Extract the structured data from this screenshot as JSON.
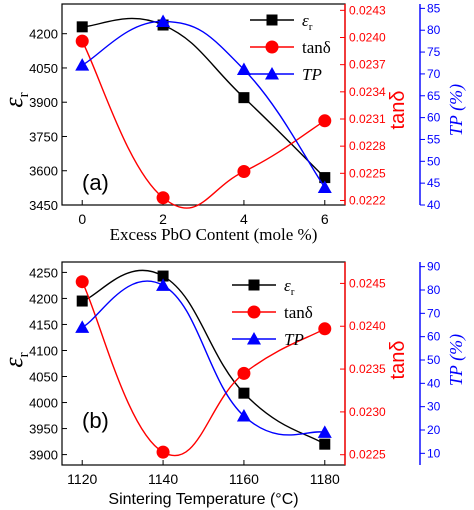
{
  "colors": {
    "permittivity": "#000000",
    "tan_delta": "#ff0000",
    "tp": "#0000ff"
  },
  "chart_data": [
    {
      "type": "line",
      "panel_label": "(a)",
      "xlabel": "Excess PbO Content (mole %)",
      "x": [
        0,
        2,
        4,
        6
      ],
      "x_ticks": [
        "0",
        "2",
        "4",
        "6"
      ],
      "xlim": [
        -0.5,
        6.5
      ],
      "axes": {
        "left": {
          "label": "ε",
          "label_sub": "r",
          "ylim": [
            3450,
            4330
          ],
          "ticks": [
            "3450",
            "3600",
            "3750",
            "3900",
            "4050",
            "4200"
          ]
        },
        "right1": {
          "label": "tanδ",
          "ylim": [
            0.02215,
            0.02437
          ],
          "ticks": [
            "0.0222",
            "0.0225",
            "0.0228",
            "0.0231",
            "0.0234",
            "0.0237",
            "0.0240",
            "0.0243"
          ]
        },
        "right2": {
          "label": "TP (%)",
          "ylim": [
            40,
            86
          ],
          "ticks": [
            "40",
            "45",
            "50",
            "55",
            "60",
            "65",
            "70",
            "75",
            "80",
            "85"
          ]
        }
      },
      "series": [
        {
          "name": "ε",
          "name_sub": "r",
          "axis": "left",
          "marker": "square",
          "color": "#000000",
          "values": [
            4230,
            4238,
            3920,
            3570
          ]
        },
        {
          "name": "tanδ",
          "axis": "right1",
          "marker": "circle",
          "color": "#ff0000",
          "values": [
            0.02396,
            0.02223,
            0.02252,
            0.02308
          ]
        },
        {
          "name": "TP",
          "axis": "right2",
          "marker": "triangle",
          "color": "#0000ff",
          "values": [
            72,
            82,
            71,
            44
          ]
        }
      ],
      "legend": "top-right"
    },
    {
      "type": "line",
      "panel_label": "(b)",
      "xlabel": "Sintering Temperature (°C)",
      "x": [
        1120,
        1140,
        1160,
        1180
      ],
      "x_ticks": [
        "1120",
        "1140",
        "1160",
        "1180"
      ],
      "xlim": [
        1115,
        1185
      ],
      "axes": {
        "left": {
          "label": "ε",
          "label_sub": "r",
          "ylim": [
            3880,
            4270
          ],
          "ticks": [
            "3900",
            "3950",
            "4000",
            "4050",
            "4100",
            "4150",
            "4200",
            "4250"
          ]
        },
        "right1": {
          "label": "tanδ",
          "ylim": [
            0.02238,
            0.02475
          ],
          "ticks": [
            "0.0225",
            "0.0230",
            "0.0235",
            "0.0240",
            "0.0245"
          ]
        },
        "right2": {
          "label": "TP (%)",
          "ylim": [
            5,
            92
          ],
          "ticks": [
            "10",
            "20",
            "30",
            "40",
            "50",
            "60",
            "70",
            "80",
            "90"
          ]
        }
      },
      "series": [
        {
          "name": "ε",
          "name_sub": "r",
          "axis": "left",
          "marker": "square",
          "color": "#000000",
          "values": [
            4195,
            4243,
            4018,
            3920
          ]
        },
        {
          "name": "tanδ",
          "axis": "right1",
          "marker": "circle",
          "color": "#ff0000",
          "values": [
            0.02452,
            0.02253,
            0.02345,
            0.02397
          ]
        },
        {
          "name": "TP",
          "axis": "right2",
          "marker": "triangle",
          "color": "#0000ff",
          "values": [
            64,
            82,
            26,
            19
          ]
        }
      ],
      "legend": "top-right"
    }
  ]
}
